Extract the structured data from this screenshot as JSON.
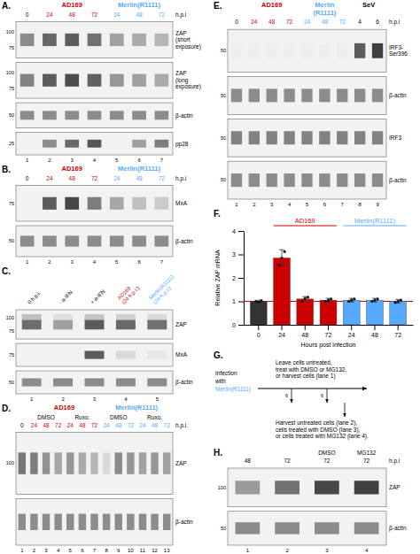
{
  "chart_data": [
    {
      "type": "blot",
      "title": "A.",
      "headers": [
        {
          "text": "AD169",
          "color": "#cc0000"
        },
        {
          "text": "Merlin(R1111)",
          "color": "#55aaff"
        }
      ],
      "categories": [
        "0",
        "24",
        "48",
        "72",
        "24",
        "48",
        "72"
      ],
      "category_colors": [
        "#000000",
        "#cc0000",
        "#cc0000",
        "#cc0000",
        "#55aaff",
        "#55aaff",
        "#55aaff"
      ],
      "unit": "h.p.i",
      "series": [
        {
          "name": "ZAP\n(short\nexposure)",
          "mw_labels": [
            "100",
            "75"
          ],
          "values": [
            0.55,
            0.72,
            0.78,
            0.68,
            0.45,
            0.4,
            0.35
          ]
        },
        {
          "name": "ZAP\n(long\nexposure)",
          "mw_labels": [
            "100",
            "75"
          ],
          "values": [
            0.6,
            0.78,
            0.85,
            0.75,
            0.5,
            0.45,
            0.4
          ]
        },
        {
          "name": "β-actin",
          "mw_labels": [
            "50"
          ],
          "values": [
            0.55,
            0.55,
            0.55,
            0.55,
            0.55,
            0.55,
            0.55
          ]
        },
        {
          "name": "pp28",
          "mw_labels": [
            "25"
          ],
          "values": [
            0.0,
            0.55,
            0.72,
            0.8,
            0.0,
            0.45,
            0.62
          ]
        }
      ],
      "lane_labels": [
        "1",
        "2",
        "3",
        "4",
        "5",
        "6",
        "7"
      ]
    },
    {
      "type": "blot",
      "title": "B.",
      "headers": [
        {
          "text": "AD169",
          "color": "#cc0000"
        },
        {
          "text": "Merlin(R1111)",
          "color": "#55aaff"
        }
      ],
      "categories": [
        "0",
        "24",
        "48",
        "72",
        "24",
        "48",
        "72"
      ],
      "category_colors": [
        "#000000",
        "#cc0000",
        "#cc0000",
        "#cc0000",
        "#55aaff",
        "#55aaff",
        "#55aaff"
      ],
      "unit": "h.p.i",
      "series": [
        {
          "name": "MxA",
          "mw_labels": [
            "75"
          ],
          "values": [
            0.0,
            0.78,
            0.88,
            0.62,
            0.42,
            0.3,
            0.25
          ]
        },
        {
          "name": "β-actin",
          "mw_labels": [
            "50"
          ],
          "values": [
            0.55,
            0.55,
            0.55,
            0.55,
            0.55,
            0.55,
            0.55
          ]
        }
      ],
      "lane_labels": [
        "1",
        "2",
        "3",
        "4",
        "5",
        "6",
        "7"
      ]
    },
    {
      "type": "blot",
      "title": "C.",
      "categories": [
        "0 h.p.i.",
        "- α-IFN",
        "+ α-IFN",
        "AD169\n(24 h.p.i.)",
        "Merlin(R1111)\n(24 h.p.i.)"
      ],
      "category_colors": [
        "#000000",
        "#000000",
        "#000000",
        "#cc0000",
        "#55aaff"
      ],
      "series": [
        {
          "name": "ZAP",
          "mw_labels": [
            "100",
            "75"
          ],
          "values": [
            0.7,
            0.45,
            0.78,
            0.72,
            0.68
          ],
          "second_values": [
            0.3,
            0.15,
            0.28,
            0.22,
            0.18
          ]
        },
        {
          "name": "MxA",
          "mw_labels": [
            "75"
          ],
          "values": [
            0.0,
            0.0,
            0.78,
            0.18,
            0.12
          ]
        },
        {
          "name": "β-actin",
          "mw_labels": [
            "50"
          ],
          "values": [
            0.55,
            0.55,
            0.55,
            0.55,
            0.55
          ]
        }
      ],
      "lane_labels": [
        "1",
        "2",
        "3",
        "4",
        "5"
      ]
    },
    {
      "type": "blot",
      "title": "D.",
      "headers": [
        {
          "text": "AD169",
          "color": "#cc0000"
        },
        {
          "text": "Merlin(R1111)",
          "color": "#55aaff"
        }
      ],
      "sub_labels": [
        "DMSO",
        "Ruxo.",
        "DMSO",
        "Ruxo."
      ],
      "categories": [
        "0",
        "24",
        "48",
        "72",
        "24",
        "48",
        "72",
        "24",
        "48",
        "72",
        "24",
        "48",
        "72"
      ],
      "category_colors": [
        "#000000",
        "#cc0000",
        "#cc0000",
        "#cc0000",
        "#cc0000",
        "#cc0000",
        "#cc0000",
        "#55aaff",
        "#55aaff",
        "#55aaff",
        "#55aaff",
        "#55aaff",
        "#55aaff"
      ],
      "unit": "h.p.i.",
      "series": [
        {
          "name": "ZAP",
          "mw_labels": [
            "100"
          ],
          "values": [
            0.65,
            0.62,
            0.52,
            0.42,
            0.5,
            0.4,
            0.35,
            0.18,
            0.55,
            0.5,
            0.45,
            0.5,
            0.45
          ]
        },
        {
          "name": "β-actin",
          "mw_labels": [],
          "values": [
            0.55,
            0.55,
            0.55,
            0.55,
            0.55,
            0.55,
            0.55,
            0.55,
            0.55,
            0.55,
            0.55,
            0.55,
            0.55
          ]
        }
      ],
      "lane_labels": [
        "1",
        "2",
        "3",
        "4",
        "5",
        "6",
        "7",
        "8",
        "9",
        "10",
        "11",
        "12",
        "13"
      ]
    },
    {
      "type": "blot",
      "title": "E.",
      "headers": [
        {
          "text": "AD169",
          "color": "#cc0000"
        },
        {
          "text": "Merlin\n(R1111)",
          "color": "#55aaff"
        },
        {
          "text": "SeV"
        }
      ],
      "categories": [
        "0",
        "24",
        "48",
        "72",
        "24",
        "48",
        "72",
        "4",
        "6"
      ],
      "category_colors": [
        "#000000",
        "#cc0000",
        "#cc0000",
        "#cc0000",
        "#55aaff",
        "#55aaff",
        "#55aaff",
        "#000000",
        "#000000"
      ],
      "unit": "h.p.i",
      "series": [
        {
          "name": "IRF3-\nSer396",
          "mw_labels": [
            "50"
          ],
          "values": [
            0.08,
            0.08,
            0.08,
            0.08,
            0.08,
            0.08,
            0.08,
            0.78,
            0.92
          ]
        },
        {
          "name": "β-actin",
          "mw_labels": [
            "50"
          ],
          "values": [
            0.55,
            0.55,
            0.55,
            0.55,
            0.55,
            0.55,
            0.55,
            0.55,
            0.55
          ]
        },
        {
          "name": "IRF3",
          "mw_labels": [
            "50"
          ],
          "values": [
            0.6,
            0.6,
            0.6,
            0.6,
            0.6,
            0.6,
            0.6,
            0.6,
            0.6
          ]
        },
        {
          "name": "β-actin",
          "mw_labels": [
            "50"
          ],
          "values": [
            0.55,
            0.55,
            0.55,
            0.55,
            0.55,
            0.55,
            0.55,
            0.55,
            0.55
          ]
        }
      ],
      "lane_labels": [
        "1",
        "2",
        "3",
        "4",
        "5",
        "6",
        "7",
        "8",
        "9"
      ]
    },
    {
      "type": "bar",
      "title": "F.",
      "groups": [
        {
          "name": "AD169",
          "color": "#cc0000"
        },
        {
          "name": "Merlin(R1111)",
          "color": "#55aaff"
        }
      ],
      "xlabel": "Hours post infection",
      "ylabel": "Relative ZAP mRNA",
      "categories": [
        "0",
        "24",
        "48",
        "72",
        "24",
        "48",
        "72"
      ],
      "values": [
        1.0,
        2.85,
        1.1,
        1.05,
        1.05,
        1.05,
        1.0
      ],
      "colors": [
        "#333333",
        "#cc0000",
        "#cc0000",
        "#cc0000",
        "#55aaff",
        "#55aaff",
        "#55aaff"
      ],
      "errors": [
        0.05,
        0.35,
        0.1,
        0.08,
        0.08,
        0.08,
        0.08
      ],
      "points": [
        [
          1.0,
          0.97,
          1.03
        ],
        [
          2.55,
          2.85,
          3.12
        ],
        [
          1.0,
          1.12,
          1.18
        ],
        [
          1.0,
          1.05,
          1.1
        ],
        [
          1.0,
          1.05,
          1.1
        ],
        [
          1.0,
          1.05,
          1.1
        ],
        [
          0.95,
          1.0,
          1.05
        ]
      ],
      "reference_line": {
        "value": 1.0,
        "color": "#cc0000"
      },
      "ylim": [
        0,
        4
      ],
      "yticks": [
        0,
        1,
        2,
        3,
        4
      ]
    },
    {
      "type": "diagram",
      "title": "G.",
      "annotations": [
        {
          "text": "Infection"
        },
        {
          "text": "with"
        },
        {
          "text": "Merlin(R1111)",
          "color": "#55aaff"
        },
        {
          "text": "Leave cells untreated,\ntreat with DMSO or MG132,\nor harvest cells (lane 1)"
        },
        {
          "text": "6"
        },
        {
          "text": "6"
        },
        {
          "text": "Harvest untreated cells (lane 2),\ncells treated with DMSO (lane 3),\nor cells treated with MG132 (lane 4)."
        }
      ]
    },
    {
      "type": "blot",
      "title": "H.",
      "sub_labels": [
        "DMSO",
        "MG132"
      ],
      "categories": [
        "48",
        "72",
        "72",
        "72"
      ],
      "unit": "h.p.i",
      "series": [
        {
          "name": "ZAP",
          "mw_labels": [
            "100"
          ],
          "values": [
            0.48,
            0.68,
            0.88,
            0.92
          ]
        },
        {
          "name": "β-actin",
          "mw_labels": [
            "50"
          ],
          "values": [
            0.55,
            0.55,
            0.55,
            0.55
          ]
        }
      ],
      "lane_labels": [
        "1",
        "2",
        "3",
        "4"
      ]
    }
  ]
}
